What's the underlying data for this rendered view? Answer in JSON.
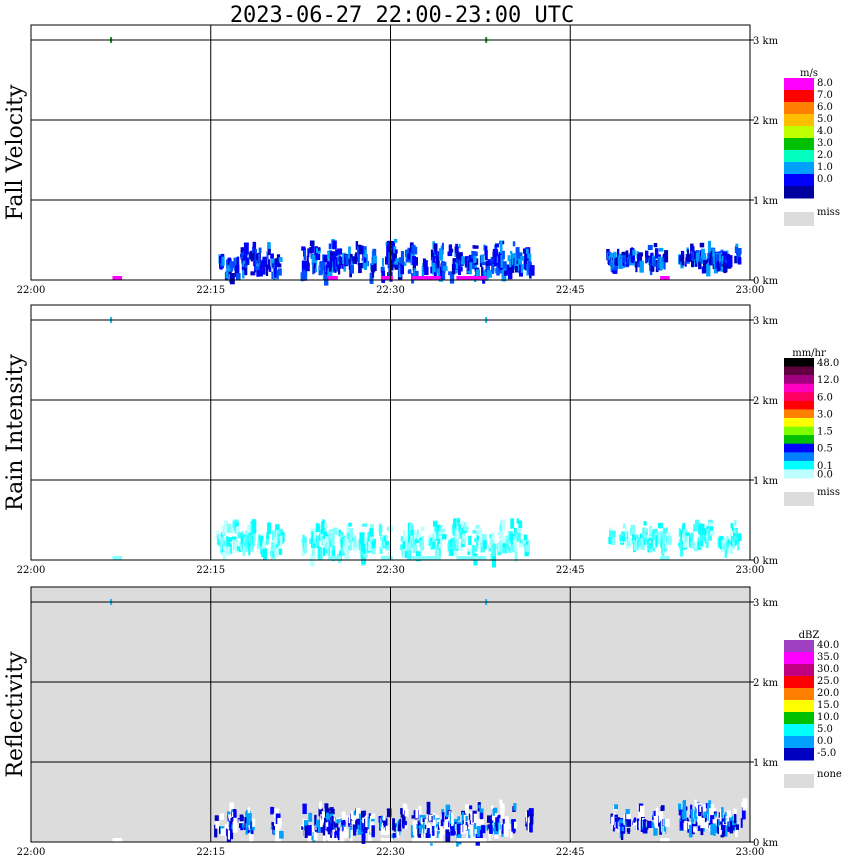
{
  "title": "2023-06-27   22:00-23:00 UTC",
  "x_ticks": [
    "22:00",
    "22:15",
    "22:30",
    "22:45",
    "23:00"
  ],
  "y_ticks": [
    "0 km",
    "1 km",
    "2 km",
    "3 km"
  ],
  "panels": [
    {
      "key": "fall",
      "ylabel": "Fall Velocity",
      "unit": "m/s",
      "background": "#ffffff",
      "colorbar": [
        {
          "color": "#ff00ff",
          "label": "8.0"
        },
        {
          "color": "#ff0000",
          "label": "7.0"
        },
        {
          "color": "#ff8000",
          "label": "6.0"
        },
        {
          "color": "#ffbf00",
          "label": "5.0"
        },
        {
          "color": "#c0ff00",
          "label": "4.0"
        },
        {
          "color": "#00c000",
          "label": "3.0"
        },
        {
          "color": "#00ffc0",
          "label": "2.0"
        },
        {
          "color": "#00a0ff",
          "label": "1.0"
        },
        {
          "color": "#0000ff",
          "label": "0.0"
        },
        {
          "color": "#0000a0",
          "label": ""
        }
      ],
      "miss_label": "miss"
    },
    {
      "key": "rain",
      "ylabel": "Rain Intensity",
      "unit": "mm/hr",
      "background": "#ffffff",
      "colorbar": [
        {
          "color": "#000000",
          "label": "48.0"
        },
        {
          "color": "#600040",
          "label": ""
        },
        {
          "color": "#a00080",
          "label": "12.0"
        },
        {
          "color": "#ff00c0",
          "label": ""
        },
        {
          "color": "#ff0060",
          "label": "6.0"
        },
        {
          "color": "#ff0000",
          "label": ""
        },
        {
          "color": "#ff8000",
          "label": "3.0"
        },
        {
          "color": "#ffff00",
          "label": ""
        },
        {
          "color": "#80ff00",
          "label": "1.5"
        },
        {
          "color": "#00c000",
          "label": ""
        },
        {
          "color": "#0000ff",
          "label": "0.5"
        },
        {
          "color": "#0080ff",
          "label": ""
        },
        {
          "color": "#00ffff",
          "label": "0.1"
        },
        {
          "color": "#c0ffff",
          "label": "0.0"
        }
      ],
      "miss_label": "miss"
    },
    {
      "key": "refl",
      "ylabel": "Reflectivity",
      "unit": "dBZ",
      "background": "#dcdcdc",
      "colorbar": [
        {
          "color": "#a040c0",
          "label": "40.0"
        },
        {
          "color": "#ff00ff",
          "label": "35.0"
        },
        {
          "color": "#c00080",
          "label": "30.0"
        },
        {
          "color": "#ff0000",
          "label": "25.0"
        },
        {
          "color": "#ff8000",
          "label": "20.0"
        },
        {
          "color": "#ffff00",
          "label": "15.0"
        },
        {
          "color": "#00c000",
          "label": "10.0"
        },
        {
          "color": "#00ffff",
          "label": "5.0"
        },
        {
          "color": "#00a0ff",
          "label": "0.0"
        },
        {
          "color": "#0000c0",
          "label": "-5.0"
        }
      ],
      "miss_label": "none"
    }
  ],
  "chart_data": [
    {
      "type": "heatmap",
      "panel": "fall",
      "title": "",
      "xlabel": "",
      "ylabel": "Fall Velocity",
      "xlim": [
        "22:00",
        "23:00"
      ],
      "ylim": [
        0,
        3
      ],
      "grid": true,
      "echo_clusters_km": [
        {
          "x_min": 15.1,
          "x_max": 20.7,
          "y": [
            0.05,
            0.55
          ]
        },
        {
          "x_min": 22.5,
          "x_max": 28.5,
          "y": [
            0.05,
            0.55
          ]
        },
        {
          "x_min": 29.0,
          "x_max": 41.5,
          "y": [
            0.05,
            0.55
          ]
        },
        {
          "x_min": 48.0,
          "x_max": 53.0,
          "y": [
            0.15,
            0.5
          ]
        },
        {
          "x_min": 54.0,
          "x_max": 59.5,
          "y": [
            0.15,
            0.55
          ]
        }
      ]
    },
    {
      "type": "heatmap",
      "panel": "rain",
      "title": "",
      "xlabel": "",
      "ylabel": "Rain Intensity",
      "xlim": [
        "22:00",
        "23:00"
      ],
      "ylim": [
        0,
        3
      ],
      "grid": true
    },
    {
      "type": "heatmap",
      "panel": "refl",
      "title": "",
      "xlabel": "",
      "ylabel": "Reflectivity",
      "xlim": [
        "22:00",
        "23:00"
      ],
      "ylim": [
        0,
        3
      ],
      "grid": true
    }
  ]
}
